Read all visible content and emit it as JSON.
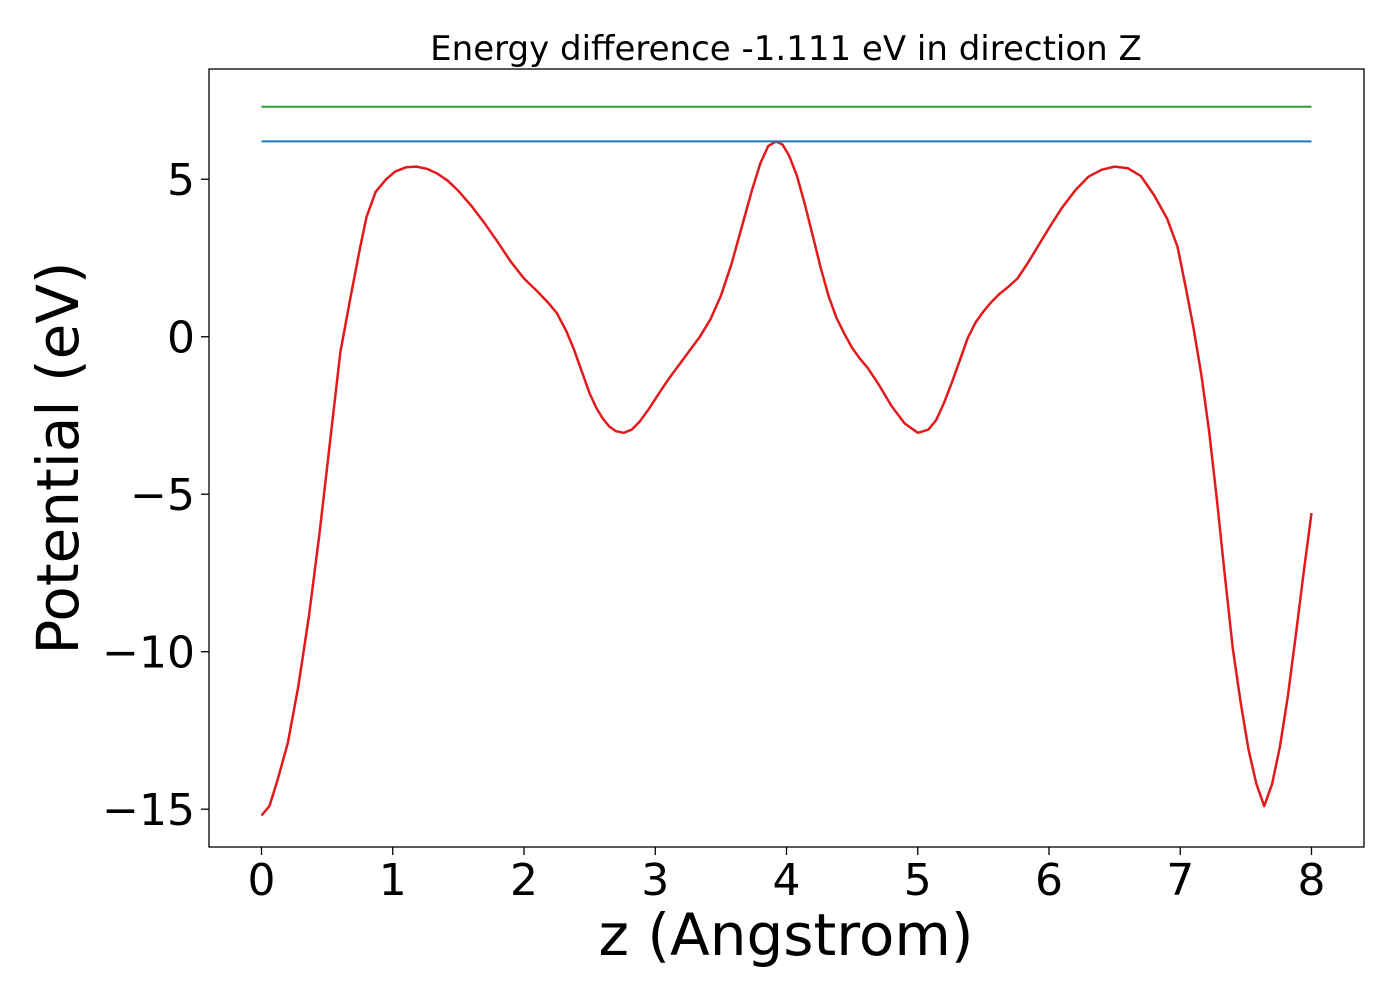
{
  "chart_data": {
    "type": "line",
    "title": "Energy difference -1.111 eV in direction Z",
    "xlabel": "z (Angstrom)",
    "ylabel": "Potential (eV)",
    "xlim": [
      -0.4,
      8.4
    ],
    "ylim": [
      -16.2,
      8.5
    ],
    "xticks": [
      0,
      1,
      2,
      3,
      4,
      5,
      6,
      7,
      8
    ],
    "xtick_labels": [
      "0",
      "1",
      "2",
      "3",
      "4",
      "5",
      "6",
      "7",
      "8"
    ],
    "yticks": [
      -15,
      -10,
      -5,
      0,
      5
    ],
    "ytick_labels": [
      "−15",
      "−10",
      "−5",
      "0",
      "5"
    ],
    "grid": false,
    "legend": "none",
    "series": [
      {
        "color": "#e31a1c",
        "x": [
          0,
          0.06,
          0.12,
          0.2,
          0.28,
          0.36,
          0.44,
          0.52,
          0.6,
          0.68,
          0.75,
          0.8,
          0.87,
          0.95,
          1.02,
          1.1,
          1.18,
          1.26,
          1.34,
          1.42,
          1.5,
          1.6,
          1.7,
          1.8,
          1.9,
          2.0,
          2.1,
          2.18,
          2.25,
          2.32,
          2.38,
          2.44,
          2.5,
          2.55,
          2.6,
          2.65,
          2.7,
          2.76,
          2.82,
          2.88,
          2.95,
          3.02,
          3.1,
          3.18,
          3.26,
          3.34,
          3.42,
          3.5,
          3.58,
          3.66,
          3.74,
          3.8,
          3.86,
          3.92,
          3.97,
          4.02,
          4.08,
          4.14,
          4.2,
          4.26,
          4.32,
          4.38,
          4.44,
          4.5,
          4.56,
          4.62,
          4.7,
          4.8,
          4.9,
          5.0,
          5.08,
          5.14,
          5.2,
          5.26,
          5.32,
          5.38,
          5.44,
          5.5,
          5.56,
          5.62,
          5.68,
          5.76,
          5.84,
          5.92,
          6.0,
          6.1,
          6.2,
          6.3,
          6.4,
          6.5,
          6.6,
          6.7,
          6.8,
          6.9,
          6.98,
          7.04,
          7.1,
          7.16,
          7.22,
          7.28,
          7.34,
          7.4,
          7.46,
          7.52,
          7.58,
          7.64,
          7.7,
          7.76,
          7.82,
          7.88,
          7.94,
          8.0
        ],
        "y": [
          -15.2,
          -14.9,
          -14.1,
          -12.9,
          -11.1,
          -8.9,
          -6.3,
          -3.4,
          -0.5,
          1.3,
          2.8,
          3.8,
          4.6,
          5.0,
          5.25,
          5.38,
          5.4,
          5.33,
          5.18,
          4.95,
          4.63,
          4.15,
          3.6,
          3.0,
          2.38,
          1.85,
          1.45,
          1.1,
          0.75,
          0.2,
          -0.4,
          -1.1,
          -1.8,
          -2.25,
          -2.6,
          -2.85,
          -3.0,
          -3.05,
          -2.95,
          -2.7,
          -2.3,
          -1.85,
          -1.35,
          -0.9,
          -0.45,
          0.0,
          0.55,
          1.3,
          2.3,
          3.5,
          4.7,
          5.5,
          6.05,
          6.2,
          6.1,
          5.75,
          5.1,
          4.2,
          3.2,
          2.2,
          1.3,
          0.6,
          0.1,
          -0.35,
          -0.7,
          -1.0,
          -1.5,
          -2.2,
          -2.75,
          -3.05,
          -2.95,
          -2.65,
          -2.1,
          -1.45,
          -0.75,
          -0.05,
          0.45,
          0.8,
          1.1,
          1.35,
          1.55,
          1.85,
          2.35,
          2.9,
          3.45,
          4.1,
          4.65,
          5.08,
          5.3,
          5.4,
          5.35,
          5.1,
          4.5,
          3.75,
          2.85,
          1.6,
          0.3,
          -1.2,
          -3.0,
          -5.2,
          -7.6,
          -9.9,
          -11.6,
          -13.1,
          -14.2,
          -14.9,
          -14.2,
          -13.0,
          -11.4,
          -9.5,
          -7.5,
          -5.6
        ],
        "line_width": 2.5
      },
      {
        "color": "#1f77b4",
        "x": [
          0,
          8
        ],
        "y": [
          6.2,
          6.2
        ],
        "line_width": 2
      },
      {
        "color": "#2ca02c",
        "x": [
          0,
          8
        ],
        "y": [
          7.3,
          7.3
        ],
        "line_width": 2
      }
    ]
  }
}
